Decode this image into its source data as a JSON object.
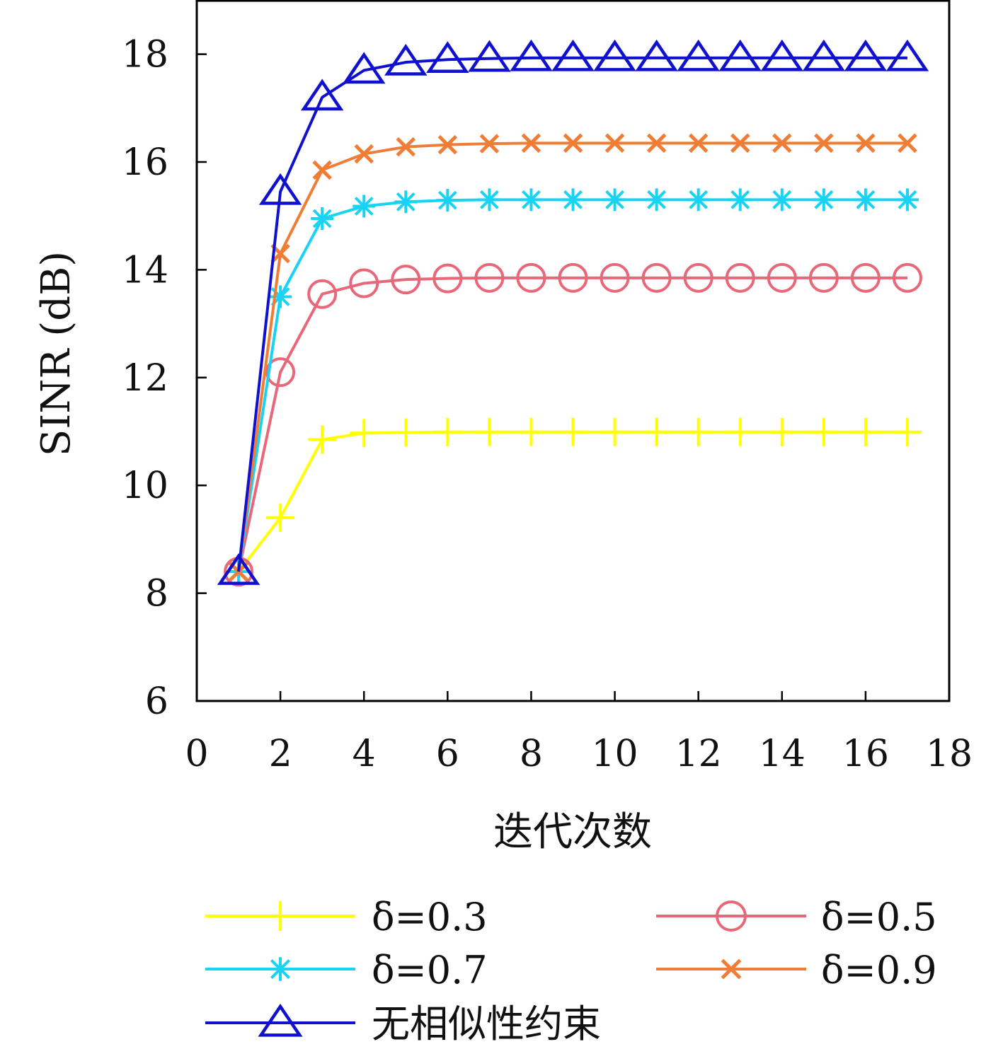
{
  "chart_data": {
    "type": "line",
    "xlabel": "迭代次数",
    "ylabel": "SINR (dB)",
    "xlim": [
      0,
      18
    ],
    "ylim": [
      6,
      19
    ],
    "xticks": [
      0,
      2,
      4,
      6,
      8,
      10,
      12,
      14,
      16,
      18
    ],
    "yticks": [
      6,
      8,
      10,
      12,
      14,
      16,
      18
    ],
    "grid": false,
    "legend_position": "bottom",
    "x": [
      1,
      2,
      3,
      4,
      5,
      6,
      7,
      8,
      9,
      10,
      11,
      12,
      13,
      14,
      15,
      16,
      17
    ],
    "series": [
      {
        "name": "δ=0.3",
        "color": "#ffff00",
        "marker": "plus",
        "values": [
          8.4,
          9.4,
          10.85,
          10.97,
          10.98,
          10.99,
          10.99,
          10.99,
          10.99,
          10.99,
          10.99,
          10.99,
          10.99,
          10.99,
          10.99,
          10.99,
          10.99
        ]
      },
      {
        "name": "δ=0.5",
        "color": "#e8687a",
        "marker": "circle",
        "values": [
          8.4,
          12.1,
          13.55,
          13.75,
          13.82,
          13.84,
          13.85,
          13.85,
          13.85,
          13.85,
          13.85,
          13.85,
          13.85,
          13.85,
          13.85,
          13.85,
          13.85
        ]
      },
      {
        "name": "δ=0.7",
        "color": "#19d3f3",
        "marker": "star",
        "values": [
          8.4,
          13.5,
          14.95,
          15.18,
          15.26,
          15.29,
          15.3,
          15.3,
          15.3,
          15.3,
          15.3,
          15.3,
          15.3,
          15.3,
          15.3,
          15.3,
          15.3
        ]
      },
      {
        "name": "δ=0.9",
        "color": "#f07d35",
        "marker": "x",
        "values": [
          8.4,
          14.3,
          15.85,
          16.15,
          16.28,
          16.32,
          16.34,
          16.35,
          16.35,
          16.35,
          16.35,
          16.35,
          16.35,
          16.35,
          16.35,
          16.35,
          16.35
        ]
      },
      {
        "name": "无相似性约束",
        "color": "#1010d0",
        "marker": "triangle",
        "values": [
          8.4,
          15.45,
          17.2,
          17.7,
          17.85,
          17.9,
          17.92,
          17.93,
          17.93,
          17.93,
          17.93,
          17.93,
          17.93,
          17.93,
          17.93,
          17.93,
          17.93
        ]
      }
    ]
  }
}
